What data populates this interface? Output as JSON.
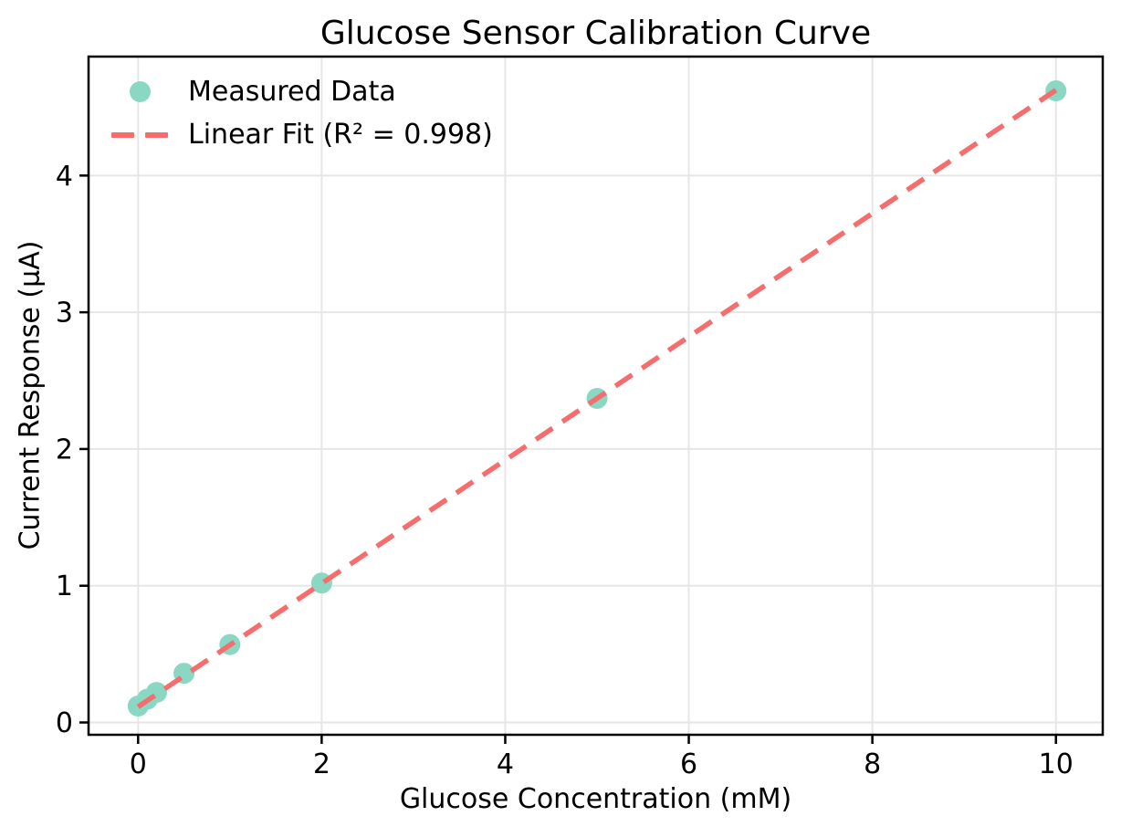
{
  "chart_data": {
    "type": "scatter",
    "title": "Glucose Sensor Calibration Curve",
    "xlabel": "Glucose Concentration (mM)",
    "ylabel": "Current Response (μA)",
    "xlim": [
      -0.54,
      10.51
    ],
    "ylim": [
      -0.09,
      4.87
    ],
    "x_ticks": [
      0,
      2,
      4,
      6,
      8,
      10
    ],
    "y_ticks": [
      0,
      1,
      2,
      3,
      4
    ],
    "grid": true,
    "legend_position": "upper-left",
    "series": [
      {
        "name": "Measured Data",
        "type": "scatter",
        "color": "#8ad8c4",
        "points": [
          [
            0.0,
            0.12
          ],
          [
            0.1,
            0.17
          ],
          [
            0.2,
            0.22
          ],
          [
            0.5,
            0.36
          ],
          [
            1.0,
            0.57
          ],
          [
            2.0,
            1.02
          ],
          [
            5.0,
            2.37
          ],
          [
            10.0,
            4.62
          ]
        ]
      },
      {
        "name": "Linear Fit (R² = 0.998)",
        "type": "dashed-line",
        "color": "#f56d6d",
        "fit": {
          "slope": 0.451,
          "intercept": 0.115,
          "r_squared": 0.998,
          "x_range": [
            0,
            10
          ]
        }
      }
    ]
  },
  "colors": {
    "background": "#ffffff",
    "grid": "#e6e6e6",
    "axis": "#000000",
    "text": "#000000",
    "marker": "#8ad8c4",
    "fit_line": "#f56d6d"
  }
}
